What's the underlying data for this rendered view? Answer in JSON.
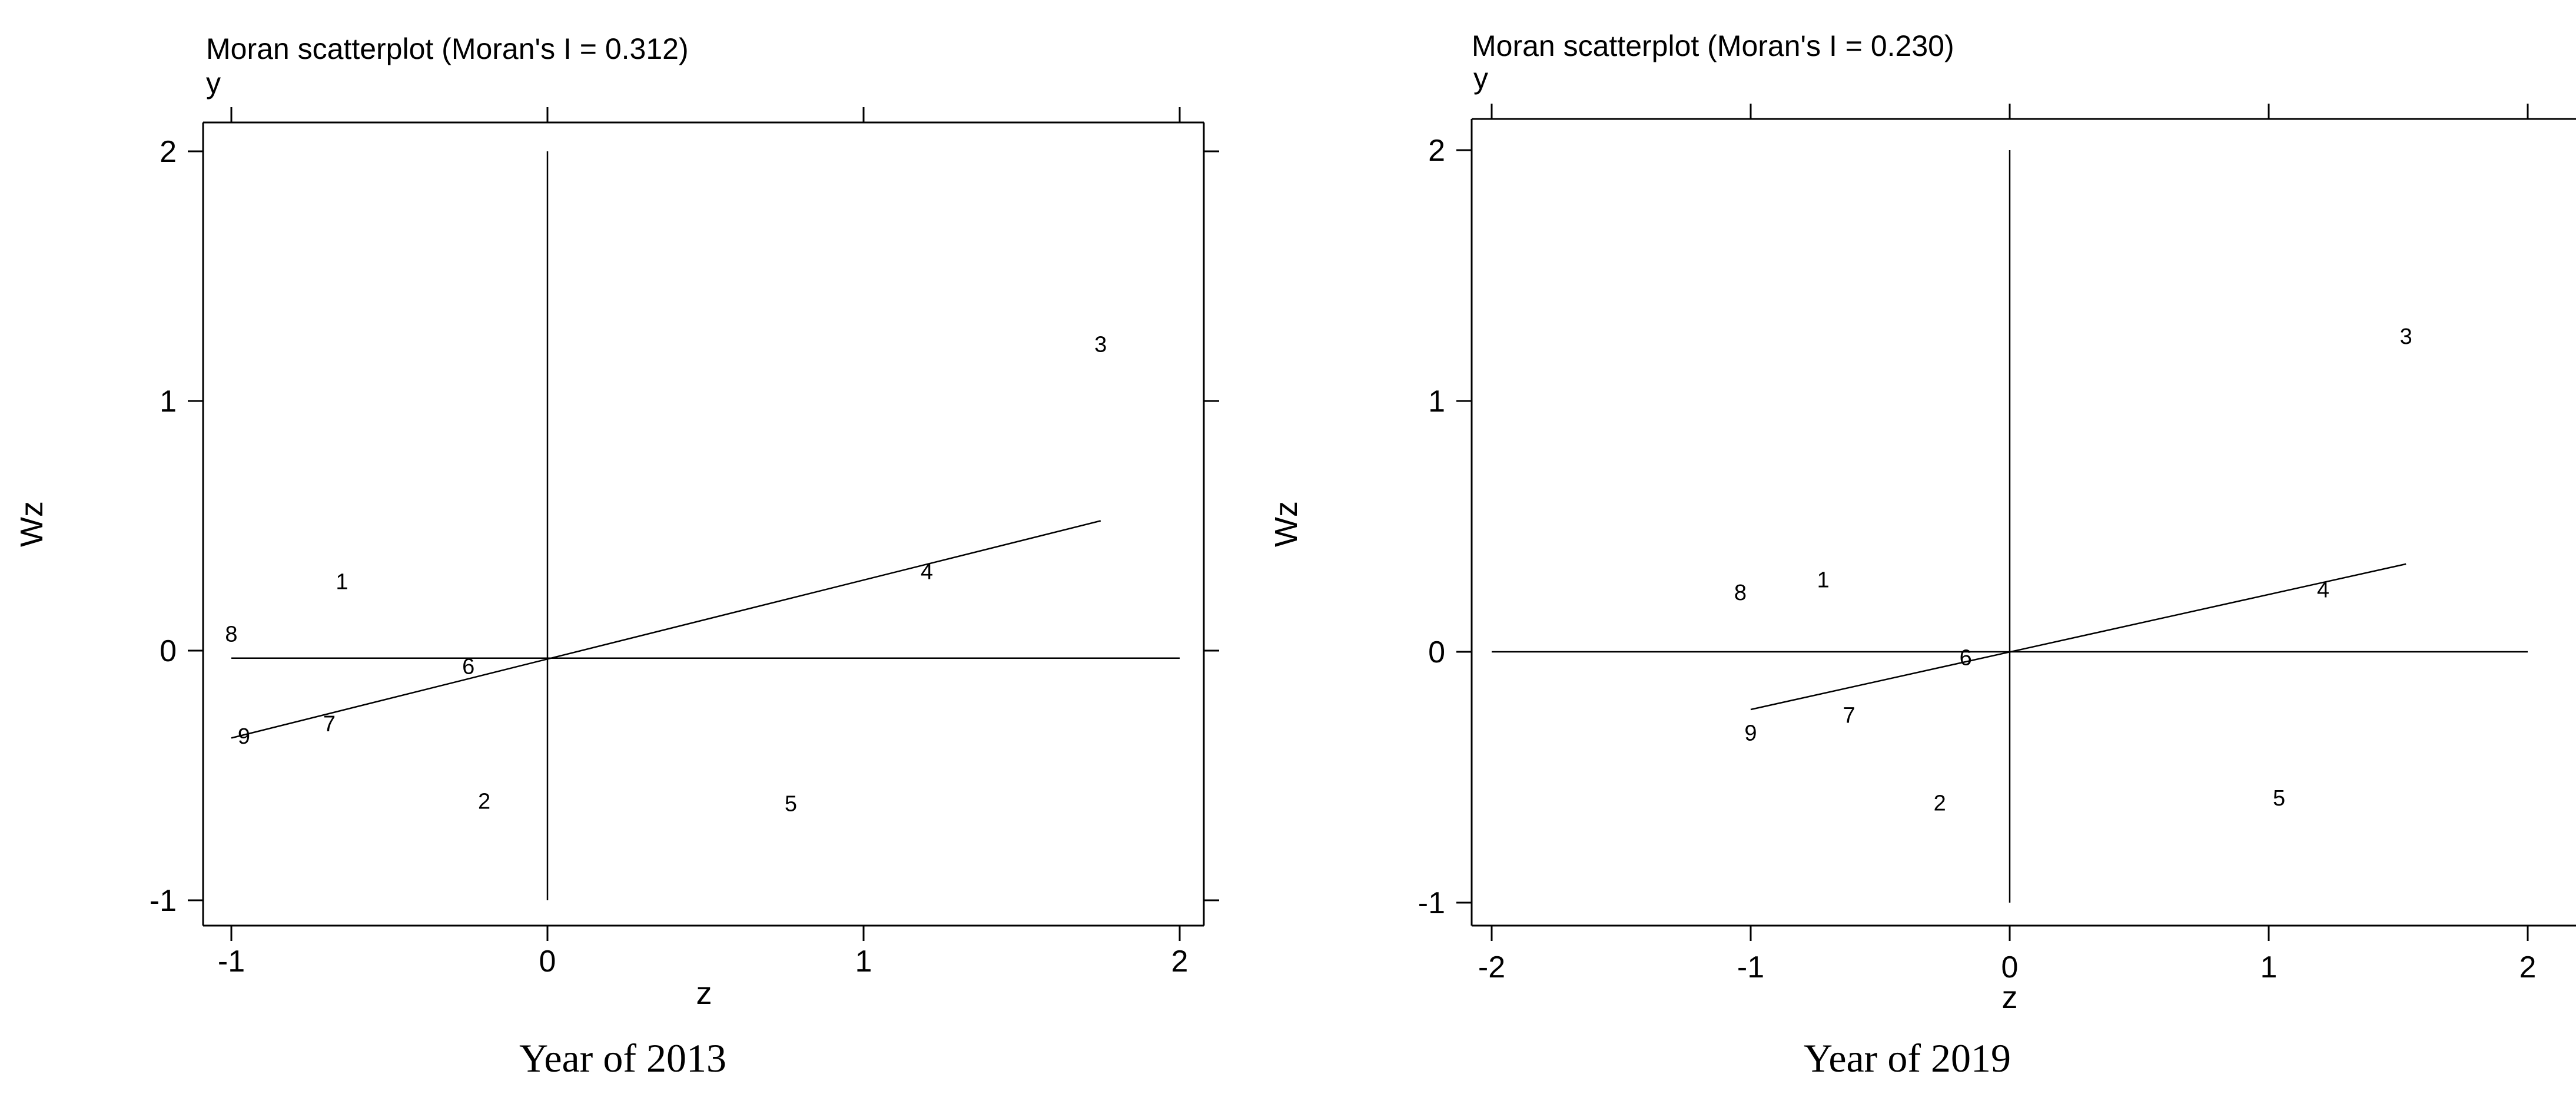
{
  "chart_data": [
    {
      "type": "scatter",
      "title": "Moran scatterplot (Moran's I = 0.312)",
      "top_label": "y",
      "xlabel": "z",
      "ylabel": "Wz",
      "caption": "Year of 2013",
      "xlim": [
        -1.0,
        2.0
      ],
      "ylim": [
        -1.0,
        2.0
      ],
      "xticks": [
        -1,
        0,
        1,
        2
      ],
      "yticks": [
        -1,
        0,
        1,
        2
      ],
      "zero_lines": {
        "h": -0.03,
        "v": 0
      },
      "fit_line": {
        "x": [
          -1.0,
          1.75
        ],
        "y": [
          -0.35,
          0.52
        ]
      },
      "points": [
        {
          "label": "1",
          "x": -0.65,
          "y": 0.28
        },
        {
          "label": "2",
          "x": -0.2,
          "y": -0.6
        },
        {
          "label": "3",
          "x": 1.75,
          "y": 1.23
        },
        {
          "label": "4",
          "x": 1.2,
          "y": 0.32
        },
        {
          "label": "5",
          "x": 0.77,
          "y": -0.61
        },
        {
          "label": "6",
          "x": -0.25,
          "y": -0.06
        },
        {
          "label": "7",
          "x": -0.69,
          "y": -0.29
        },
        {
          "label": "8",
          "x": -1.0,
          "y": 0.07
        },
        {
          "label": "9",
          "x": -0.96,
          "y": -0.34
        }
      ],
      "grid": false,
      "legend": "none"
    },
    {
      "type": "scatter",
      "title": "Moran scatterplot (Moran's I = 0.230)",
      "top_label": "y",
      "xlabel": "z",
      "ylabel": "Wz",
      "caption": "Year of 2019",
      "xlim": [
        -2.0,
        2.0
      ],
      "ylim": [
        -1.0,
        2.0
      ],
      "xticks": [
        -2,
        -1,
        0,
        1,
        2
      ],
      "yticks": [
        -1,
        0,
        1,
        2
      ],
      "zero_lines": {
        "h": 0,
        "v": 0
      },
      "fit_line": {
        "x": [
          -1.0,
          1.53
        ],
        "y": [
          -0.23,
          0.35
        ]
      },
      "points": [
        {
          "label": "1",
          "x": -0.72,
          "y": 0.29
        },
        {
          "label": "2",
          "x": -0.27,
          "y": -0.6
        },
        {
          "label": "3",
          "x": 1.53,
          "y": 1.26
        },
        {
          "label": "4",
          "x": 1.21,
          "y": 0.25
        },
        {
          "label": "5",
          "x": 1.04,
          "y": -0.58
        },
        {
          "label": "6",
          "x": -0.17,
          "y": -0.02
        },
        {
          "label": "7",
          "x": -0.62,
          "y": -0.25
        },
        {
          "label": "8",
          "x": -1.04,
          "y": 0.24
        },
        {
          "label": "9",
          "x": -1.0,
          "y": -0.32
        }
      ],
      "grid": false,
      "legend": "none"
    }
  ]
}
